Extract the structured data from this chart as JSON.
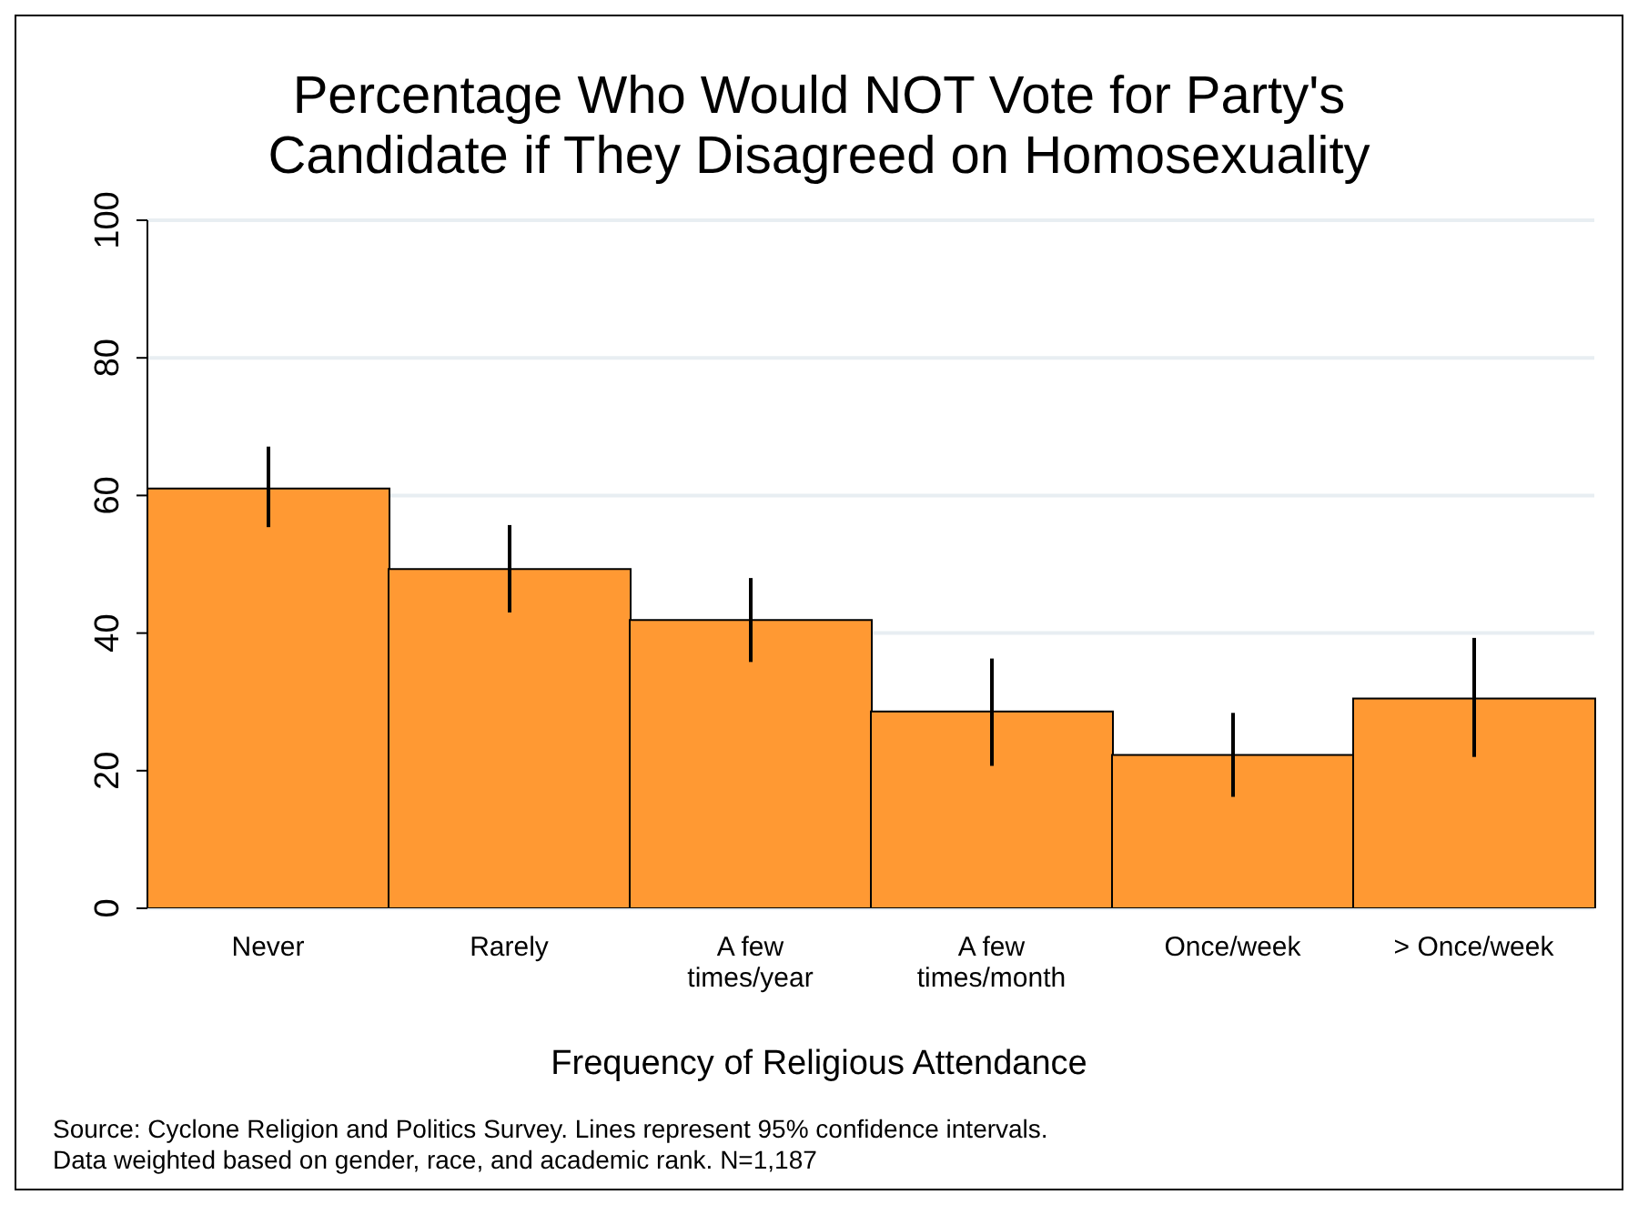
{
  "chart_data": {
    "type": "bar",
    "title": "Percentage Who Would NOT Vote for Party's Candidate if They Disagreed on Homosexuality",
    "xlabel": "Frequency of Religious Attendance",
    "categories": [
      "Never",
      "Rarely",
      "A few times/year",
      "A few times/month",
      "Once/week",
      "> Once/week"
    ],
    "values": [
      61.0,
      49.3,
      41.9,
      28.6,
      22.3,
      30.5
    ],
    "errors": [
      [
        55.4,
        67.1
      ],
      [
        43.0,
        55.7
      ],
      [
        35.8,
        48.0
      ],
      [
        20.7,
        36.3
      ],
      [
        16.2,
        28.4
      ],
      [
        22.0,
        39.3
      ]
    ],
    "color": "#ff9933",
    "ylim": [
      0,
      100
    ],
    "yticks": [
      0,
      20,
      40,
      60,
      80,
      100
    ],
    "grid": "y",
    "annotations": [
      "Source: Cyclone Religion and Politics Survey. Lines represent 95% confidence intervals.",
      "Data weighted based on gender, race, and academic rank. N=1,187"
    ]
  }
}
